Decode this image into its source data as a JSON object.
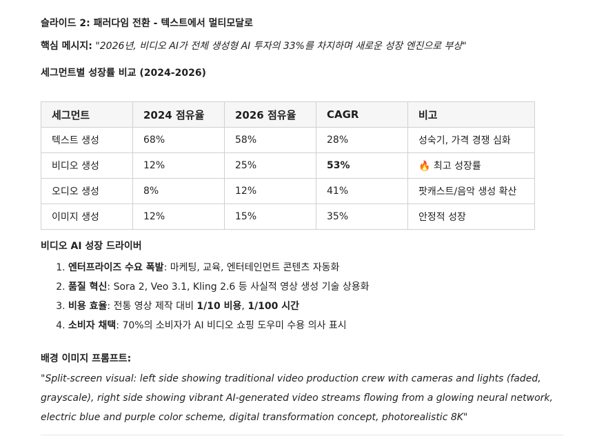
{
  "slide_title": "슬라이드 2: 패러다임 전환 - 텍스트에서 멀티모달로",
  "key_message": {
    "label": "핵심 메시지:",
    "text": "\"2026년, 비디오 AI가 전체 생성형 AI 투자의 33%를 차지하며 새로운 성장 엔진으로 부상\""
  },
  "segment_section_title": "세그먼트별 성장률 비교 (2024-2026)",
  "table": {
    "headers": [
      "세그먼트",
      "2024 점유율",
      "2026 점유율",
      "CAGR",
      "비고"
    ],
    "rows": [
      [
        "텍스트 생성",
        "68%",
        "58%",
        "28%",
        "성숙기, 가격 경쟁 심화"
      ],
      [
        "비디오 생성",
        "12%",
        "25%",
        "53%",
        "🔥 최고 성장률"
      ],
      [
        "오디오 생성",
        "8%",
        "12%",
        "41%",
        "팟캐스트/음악 생성 확산"
      ],
      [
        "이미지 생성",
        "12%",
        "15%",
        "35%",
        "안정적 성장"
      ]
    ]
  },
  "drivers_title": "비디오 AI 성장 드라이버",
  "drivers": [
    {
      "label": "엔터프라이즈 수요 폭발",
      "text": ": 마케팅, 교육, 엔터테인먼트 콘텐츠 자동화"
    },
    {
      "label": "품질 혁신",
      "text": ": Sora 2, Veo 3.1, Kling 2.6 등 사실적 영상 생성 기술 상용화"
    },
    {
      "label": "비용 효율",
      "text_a": ": 전통 영상 제작 대비 ",
      "bold_a": "1/10 비용",
      "text_b": ", ",
      "bold_b": "1/100 시간"
    },
    {
      "label": "소비자 채택",
      "text": ": 70%의 소비자가 AI 비디오 쇼핑 도우미 수용 의사 표시"
    }
  ],
  "bg_prompt_title": "배경 이미지 프롬프트:",
  "bg_prompt_text": "\"Split-screen visual: left side showing traditional video production crew with cameras and lights (faded, grayscale), right side showing vibrant AI-generated video streams flowing from a glowing neural network, electric blue and purple color scheme, digital transformation concept, photorealistic 8K\""
}
